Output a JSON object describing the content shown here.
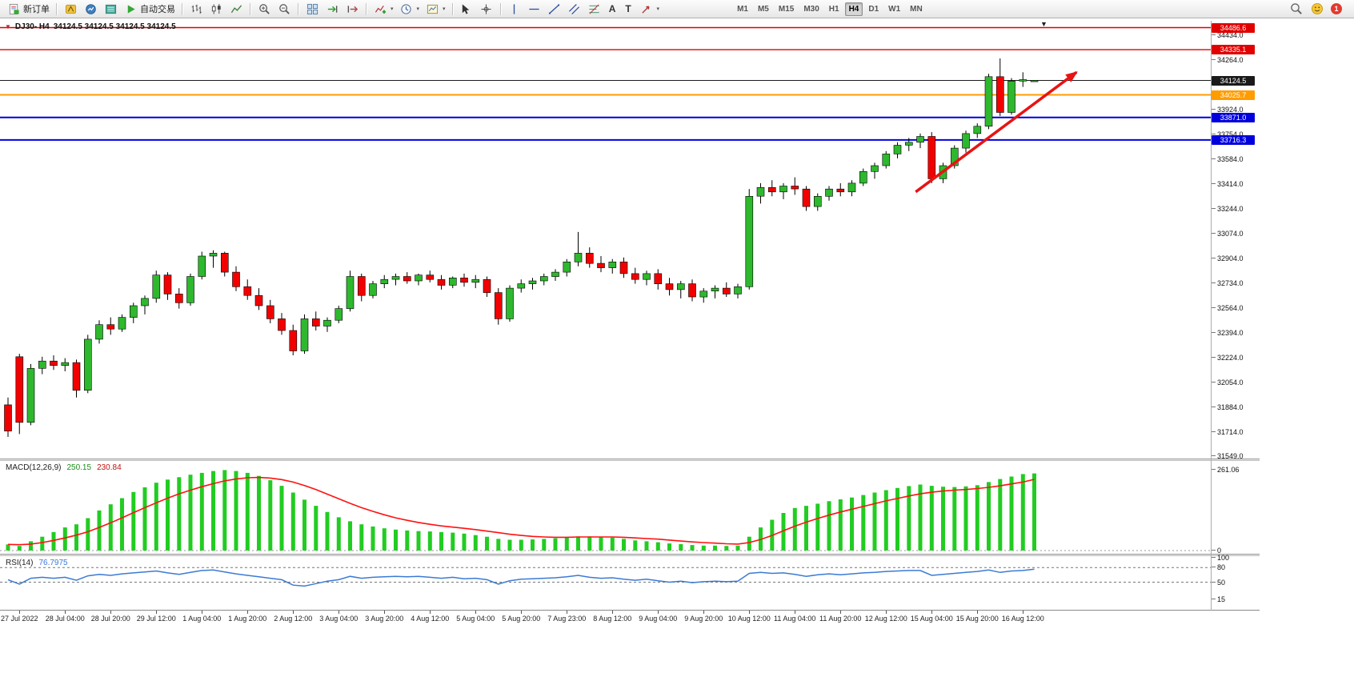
{
  "toolbar": {
    "new_order_label": "新订单",
    "auto_trading_label": "自动交易",
    "timeframes": [
      "M1",
      "M5",
      "M15",
      "M30",
      "H1",
      "H4",
      "D1",
      "W1",
      "MN"
    ],
    "active_timeframe": "H4",
    "notification_count": "1"
  },
  "icons": {
    "caret": "▾",
    "text_tool": "A",
    "label_tool": "T",
    "scroll_end_marker": "▼",
    "symbol_marker": "▼"
  },
  "chart": {
    "symbol_period": "DJ30- H4",
    "ohlc_display": "34124.5 34124.5 34124.5 34124.5"
  },
  "chart_data": {
    "type": "candlestick",
    "symbol": "DJ30",
    "timeframe": "H4",
    "ylim": [
      31532,
      34533
    ],
    "up_color": "#2eb82e",
    "down_color": "#f20000",
    "price_axis_ticks": [
      34434.0,
      34264.0,
      33924.0,
      33754.0,
      33584.0,
      33414.0,
      33244.0,
      33074.0,
      32904.0,
      32734.0,
      32564.0,
      32394.0,
      32224.0,
      32054.0,
      31884.0,
      31714.0,
      31549.0
    ],
    "hlines": [
      {
        "price": 34486.6,
        "color": "#e00000",
        "width": 1.4
      },
      {
        "price": 34335.1,
        "color": "#e00000",
        "width": 1.4
      },
      {
        "price": 34124.5,
        "color": "#1a1a1a",
        "width": 1
      },
      {
        "price": 34025.7,
        "color": "#ff9c00",
        "width": 2
      },
      {
        "price": 33871.0,
        "color": "#0000dd",
        "width": 2
      },
      {
        "price": 33716.3,
        "color": "#0000dd",
        "width": 2
      }
    ],
    "arrow": {
      "start_index": 79.6,
      "start_price": 33360,
      "end_index": 93.7,
      "end_price": 34180,
      "color": "#e81313"
    },
    "x_label_step": 4,
    "x_labels": [
      "27 Jul 2022",
      "28 Jul 04:00",
      "28 Jul 20:00",
      "29 Jul 12:00",
      "1 Aug 04:00",
      "1 Aug 20:00",
      "2 Aug 12:00",
      "3 Aug 04:00",
      "3 Aug 20:00",
      "4 Aug 12:00",
      "5 Aug 04:00",
      "5 Aug 20:00",
      "7 Aug 23:00",
      "8 Aug 12:00",
      "9 Aug 04:00",
      "9 Aug 20:00",
      "10 Aug 12:00",
      "11 Aug 04:00",
      "11 Aug 20:00",
      "12 Aug 12:00",
      "15 Aug 04:00",
      "15 Aug 20:00",
      "16 Aug 12:00"
    ],
    "ohlc": [
      [
        31900,
        31950,
        31680,
        31720
      ],
      [
        32230,
        32250,
        31700,
        31780
      ],
      [
        31780,
        32180,
        31760,
        32150
      ],
      [
        32150,
        32230,
        32110,
        32200
      ],
      [
        32200,
        32240,
        32140,
        32170
      ],
      [
        32170,
        32220,
        32130,
        32190
      ],
      [
        32190,
        32210,
        31950,
        32000
      ],
      [
        32000,
        32380,
        31980,
        32350
      ],
      [
        32350,
        32480,
        32320,
        32450
      ],
      [
        32450,
        32500,
        32380,
        32420
      ],
      [
        32420,
        32520,
        32400,
        32500
      ],
      [
        32500,
        32600,
        32460,
        32580
      ],
      [
        32580,
        32650,
        32520,
        32630
      ],
      [
        32630,
        32820,
        32600,
        32790
      ],
      [
        32790,
        32810,
        32620,
        32660
      ],
      [
        32660,
        32700,
        32560,
        32600
      ],
      [
        32600,
        32800,
        32580,
        32780
      ],
      [
        32780,
        32950,
        32760,
        32920
      ],
      [
        32920,
        32960,
        32840,
        32940
      ],
      [
        32940,
        32950,
        32780,
        32810
      ],
      [
        32810,
        32850,
        32680,
        32710
      ],
      [
        32710,
        32760,
        32620,
        32650
      ],
      [
        32650,
        32700,
        32550,
        32580
      ],
      [
        32580,
        32620,
        32460,
        32490
      ],
      [
        32490,
        32530,
        32380,
        32410
      ],
      [
        32410,
        32450,
        32240,
        32270
      ],
      [
        32270,
        32520,
        32250,
        32490
      ],
      [
        32490,
        32540,
        32410,
        32440
      ],
      [
        32440,
        32500,
        32400,
        32480
      ],
      [
        32480,
        32580,
        32460,
        32560
      ],
      [
        32560,
        32820,
        32540,
        32780
      ],
      [
        32780,
        32800,
        32610,
        32650
      ],
      [
        32650,
        32750,
        32630,
        32730
      ],
      [
        32730,
        32790,
        32700,
        32760
      ],
      [
        32760,
        32800,
        32720,
        32780
      ],
      [
        32780,
        32810,
        32730,
        32750
      ],
      [
        32750,
        32800,
        32720,
        32790
      ],
      [
        32790,
        32820,
        32740,
        32760
      ],
      [
        32760,
        32790,
        32690,
        32720
      ],
      [
        32720,
        32780,
        32700,
        32770
      ],
      [
        32770,
        32800,
        32710,
        32740
      ],
      [
        32740,
        32790,
        32700,
        32760
      ],
      [
        32760,
        32780,
        32640,
        32670
      ],
      [
        32670,
        32700,
        32450,
        32490
      ],
      [
        32490,
        32720,
        32470,
        32700
      ],
      [
        32700,
        32760,
        32670,
        32730
      ],
      [
        32730,
        32770,
        32690,
        32750
      ],
      [
        32750,
        32800,
        32720,
        32780
      ],
      [
        32780,
        32830,
        32750,
        32810
      ],
      [
        32810,
        32900,
        32780,
        32880
      ],
      [
        32880,
        33085,
        32850,
        32940
      ],
      [
        32940,
        32980,
        32840,
        32870
      ],
      [
        32870,
        32920,
        32810,
        32840
      ],
      [
        32840,
        32900,
        32800,
        32880
      ],
      [
        32880,
        32910,
        32770,
        32800
      ],
      [
        32800,
        32840,
        32730,
        32760
      ],
      [
        32760,
        32820,
        32720,
        32800
      ],
      [
        32800,
        32830,
        32690,
        32730
      ],
      [
        32730,
        32770,
        32650,
        32690
      ],
      [
        32690,
        32750,
        32630,
        32730
      ],
      [
        32730,
        32760,
        32610,
        32640
      ],
      [
        32640,
        32700,
        32600,
        32680
      ],
      [
        32680,
        32720,
        32630,
        32700
      ],
      [
        32700,
        32740,
        32640,
        32660
      ],
      [
        32660,
        32730,
        32630,
        32710
      ],
      [
        32710,
        33380,
        32690,
        33330
      ],
      [
        33330,
        33420,
        33280,
        33390
      ],
      [
        33390,
        33440,
        33330,
        33360
      ],
      [
        33360,
        33420,
        33310,
        33400
      ],
      [
        33400,
        33460,
        33340,
        33380
      ],
      [
        33380,
        33400,
        33230,
        33260
      ],
      [
        33260,
        33350,
        33230,
        33330
      ],
      [
        33330,
        33400,
        33300,
        33380
      ],
      [
        33380,
        33420,
        33330,
        33360
      ],
      [
        33360,
        33440,
        33330,
        33420
      ],
      [
        33420,
        33520,
        33400,
        33500
      ],
      [
        33500,
        33560,
        33450,
        33540
      ],
      [
        33540,
        33640,
        33520,
        33620
      ],
      [
        33620,
        33700,
        33590,
        33680
      ],
      [
        33680,
        33730,
        33640,
        33700
      ],
      [
        33700,
        33760,
        33660,
        33740
      ],
      [
        33740,
        33770,
        33420,
        33450
      ],
      [
        33450,
        33560,
        33420,
        33540
      ],
      [
        33540,
        33680,
        33520,
        33660
      ],
      [
        33660,
        33780,
        33630,
        33760
      ],
      [
        33760,
        33830,
        33730,
        33810
      ],
      [
        33810,
        34170,
        33790,
        34150
      ],
      [
        34150,
        34275,
        33880,
        33905
      ],
      [
        33905,
        34140,
        33890,
        34120
      ],
      [
        34120,
        34180,
        34080,
        34130
      ],
      [
        34124.5,
        34124.5,
        34124.5,
        34124.5
      ]
    ],
    "macd": {
      "label": "MACD(12,26,9)",
      "main_value": "250.15",
      "signal_value": "230.84",
      "bar_color": "#22cc22",
      "signal_color": "#ff1111",
      "scale_max": 275,
      "axis_labels": [
        {
          "text": "261.06",
          "value": 261.06
        },
        {
          "text": "0",
          "value": 0
        }
      ],
      "histogram": [
        20,
        15,
        30,
        45,
        60,
        75,
        85,
        105,
        130,
        150,
        170,
        190,
        205,
        220,
        230,
        238,
        246,
        252,
        258,
        261,
        258,
        252,
        242,
        228,
        210,
        188,
        165,
        145,
        125,
        108,
        95,
        85,
        78,
        72,
        68,
        65,
        63,
        62,
        60,
        58,
        55,
        50,
        45,
        38,
        35,
        35,
        36,
        38,
        40,
        43,
        46,
        46,
        44,
        42,
        38,
        33,
        30,
        27,
        23,
        21,
        18,
        16,
        16,
        15,
        16,
        45,
        75,
        100,
        122,
        138,
        145,
        152,
        160,
        166,
        172,
        180,
        188,
        196,
        203,
        209,
        214,
        210,
        207,
        206,
        208,
        212,
        222,
        232,
        240,
        248,
        250.15
      ],
      "signal": [
        20,
        19,
        21,
        26,
        33,
        41,
        50,
        61,
        75,
        90,
        106,
        123,
        139,
        155,
        170,
        184,
        196,
        207,
        217,
        226,
        232,
        236,
        237,
        235,
        230,
        222,
        211,
        198,
        183,
        168,
        153,
        139,
        127,
        116,
        106,
        98,
        91,
        85,
        80,
        76,
        72,
        68,
        63,
        58,
        53,
        49,
        46,
        44,
        43,
        43,
        44,
        44,
        44,
        44,
        43,
        41,
        39,
        37,
        34,
        31,
        28,
        26,
        24,
        22,
        21,
        26,
        36,
        49,
        64,
        79,
        92,
        104,
        115,
        125,
        134,
        143,
        152,
        161,
        169,
        177,
        184,
        189,
        193,
        196,
        198,
        201,
        205,
        210,
        216,
        222,
        230.84
      ]
    },
    "rsi": {
      "label": "RSI(14)",
      "value": "76.7975",
      "line_color": "#3b7bd4",
      "levels": [
        80,
        50
      ],
      "axis_labels": [
        {
          "text": "100",
          "value": 100
        },
        {
          "text": "80",
          "value": 80
        },
        {
          "text": "50",
          "value": 50
        },
        {
          "text": "15",
          "value": 15
        }
      ],
      "values": [
        55,
        46,
        58,
        60,
        58,
        60,
        54,
        63,
        66,
        64,
        67,
        69,
        71,
        73,
        69,
        66,
        70,
        74,
        75,
        71,
        67,
        64,
        61,
        58,
        55,
        44,
        42,
        47,
        52,
        55,
        62,
        58,
        60,
        61,
        62,
        61,
        62,
        60,
        58,
        60,
        57,
        58,
        55,
        46,
        53,
        56,
        57,
        58,
        59,
        61,
        64,
        60,
        58,
        59,
        56,
        54,
        56,
        53,
        50,
        52,
        49,
        51,
        52,
        51,
        52,
        68,
        70,
        68,
        69,
        66,
        62,
        65,
        67,
        65,
        67,
        69,
        70,
        72,
        73,
        74,
        74,
        64,
        66,
        68,
        70,
        72,
        75,
        70,
        73,
        74,
        76.7975
      ]
    }
  }
}
